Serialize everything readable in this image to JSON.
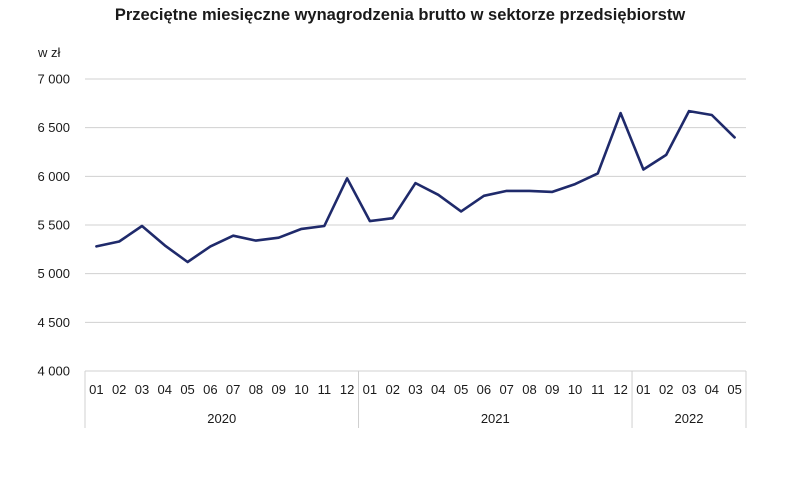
{
  "chart_data": {
    "type": "line",
    "title": "Przeciętne miesięczne wynagrodzenia brutto w sektorze przedsiębiorstw",
    "ylabel": "w zł",
    "xlabel": "",
    "ylim": [
      4000,
      7000
    ],
    "yticks": [
      4000,
      4500,
      5000,
      5500,
      6000,
      6500,
      7000
    ],
    "ytick_labels": [
      "4 000",
      "4 500",
      "5 000",
      "5 500",
      "6 000",
      "6 500",
      "7 000"
    ],
    "grid": true,
    "line_color": "#1f2a6b",
    "grid_color": "#d0d0d0",
    "categories": [
      "01",
      "02",
      "03",
      "04",
      "05",
      "06",
      "07",
      "08",
      "09",
      "10",
      "11",
      "12",
      "01",
      "02",
      "03",
      "04",
      "05",
      "06",
      "07",
      "08",
      "09",
      "10",
      "11",
      "12",
      "01",
      "02",
      "03",
      "04",
      "05"
    ],
    "groups": [
      {
        "label": "2020",
        "count": 12
      },
      {
        "label": "2021",
        "count": 12
      },
      {
        "label": "2022",
        "count": 5
      }
    ],
    "series": [
      {
        "values": [
          5280,
          5330,
          5490,
          5290,
          5120,
          5280,
          5390,
          5340,
          5370,
          5460,
          5490,
          5980,
          5540,
          5570,
          5930,
          5810,
          5640,
          5800,
          5850,
          5850,
          5840,
          5920,
          6030,
          6650,
          6070,
          6220,
          6670,
          6630,
          6400
        ]
      }
    ]
  }
}
